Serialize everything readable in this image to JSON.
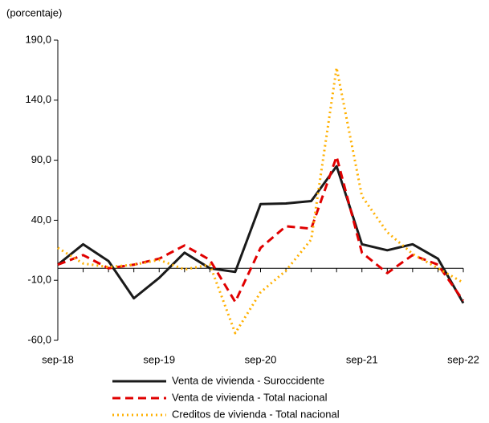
{
  "chart_data": {
    "type": "line",
    "y_axis_label": "(porcentaje)",
    "categories": [
      "sep-18",
      null,
      null,
      null,
      "sep-19",
      null,
      null,
      null,
      "sep-20",
      null,
      null,
      null,
      "sep-21",
      null,
      null,
      null,
      "sep-22"
    ],
    "ylim": [
      -60,
      190
    ],
    "yticks": [
      {
        "value": -60,
        "label": "-60,0"
      },
      {
        "value": -10,
        "label": "-10,0"
      },
      {
        "value": 40,
        "label": "40,0"
      },
      {
        "value": 90,
        "label": "90,0"
      },
      {
        "value": 140,
        "label": "140,0"
      },
      {
        "value": 190,
        "label": "190,0"
      }
    ],
    "series": [
      {
        "name": "Venta de vivienda - Suroccidente",
        "color": "#1a1a1a",
        "style": "solid",
        "values": [
          3,
          20,
          6,
          -25,
          -8,
          13,
          0,
          -3,
          53.5,
          54,
          56,
          85,
          20,
          15,
          20,
          8,
          -29
        ]
      },
      {
        "name": "Venta de vivienda - Total nacional",
        "color": "#e00000",
        "style": "dashed",
        "values": [
          3,
          11,
          0,
          3,
          8,
          19,
          7,
          -28,
          17,
          35,
          33,
          93,
          13,
          -4,
          11,
          3,
          -27
        ]
      },
      {
        "name": "Creditos de vivienda - Total nacional",
        "color": "#ffb000",
        "style": "dotted",
        "values": [
          17,
          4,
          1,
          3,
          7,
          -1,
          3,
          -54,
          -20,
          -2,
          24,
          167,
          60,
          30,
          12,
          0,
          -12
        ]
      }
    ]
  }
}
